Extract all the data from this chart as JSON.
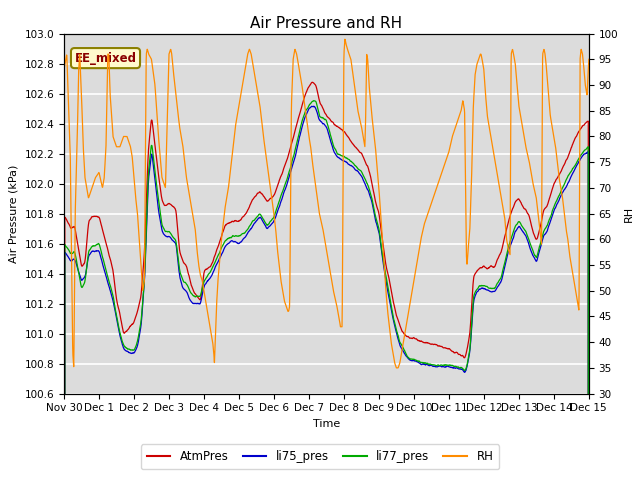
{
  "title": "Air Pressure and RH",
  "xlabel": "Time",
  "ylabel_left": "Air Pressure (kPa)",
  "ylabel_right": "RH",
  "ylim_left": [
    100.6,
    103.0
  ],
  "ylim_right": [
    30,
    100
  ],
  "yticks_left": [
    100.6,
    100.8,
    101.0,
    101.2,
    101.4,
    101.6,
    101.8,
    102.0,
    102.2,
    102.4,
    102.6,
    102.8,
    103.0
  ],
  "yticks_right": [
    30,
    35,
    40,
    45,
    50,
    55,
    60,
    65,
    70,
    75,
    80,
    85,
    90,
    95,
    100
  ],
  "xtick_labels": [
    "Nov 30",
    "Dec 1",
    "Dec 2",
    "Dec 3",
    "Dec 4",
    "Dec 5",
    "Dec 6",
    "Dec 7",
    "Dec 8",
    "Dec 9",
    "Dec 10",
    "Dec 11",
    "Dec 12",
    "Dec 13",
    "Dec 14",
    "Dec 15"
  ],
  "annotation_text": "EE_mixed",
  "annotation_color": "#8B0000",
  "annotation_bg": "#FFFACD",
  "annotation_border": "#8B8000",
  "colors": {
    "AtmPres": "#CC0000",
    "li75_pres": "#0000CC",
    "li77_pres": "#00AA00",
    "RH": "#FF8C00"
  },
  "legend_labels": [
    "AtmPres",
    "li75_pres",
    "li77_pres",
    "RH"
  ],
  "bg_color": "#DCDCDC",
  "title_fontsize": 11,
  "axis_fontsize": 8,
  "tick_fontsize": 7.5
}
